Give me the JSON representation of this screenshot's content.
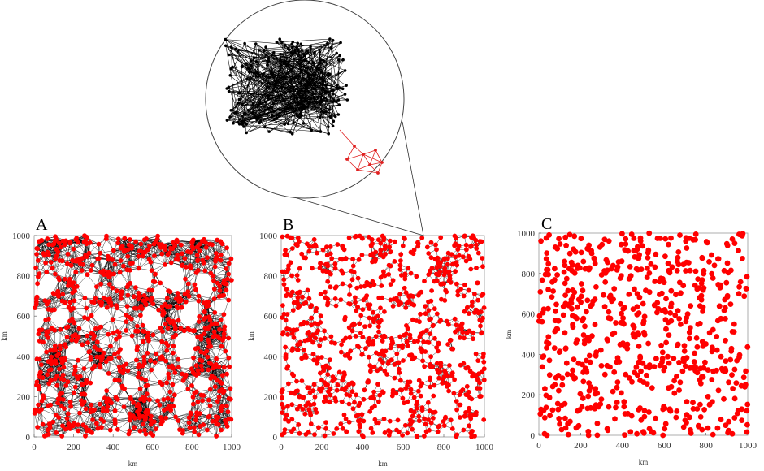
{
  "colors": {
    "node": "#ff0000",
    "node_stroke": "#cc0000",
    "edge": "#000000",
    "inset_node": "#000000",
    "inset_red": "#e02020",
    "frame": "#999999"
  },
  "chart_data": [
    {
      "panel": "A",
      "type": "scatter",
      "variant": "dense network (many edges)",
      "xlabel": "km",
      "ylabel": "km",
      "xlim": [
        0,
        1000
      ],
      "ylim": [
        0,
        1000
      ],
      "xticks": [
        "0",
        "200",
        "400",
        "600",
        "800",
        "1000"
      ],
      "yticks": [
        "0",
        "200",
        "400",
        "600",
        "800",
        "1000"
      ],
      "node_count": 900,
      "connection_radius": 80,
      "holes": [
        [
          70,
          760,
          45
        ],
        [
          260,
          750,
          40
        ],
        [
          430,
          770,
          35
        ],
        [
          560,
          780,
          40
        ],
        [
          720,
          770,
          45
        ],
        [
          870,
          750,
          40
        ],
        [
          130,
          590,
          40
        ],
        [
          340,
          600,
          45
        ],
        [
          580,
          590,
          40
        ],
        [
          790,
          610,
          40
        ],
        [
          200,
          420,
          45
        ],
        [
          470,
          410,
          40
        ],
        [
          760,
          450,
          45
        ],
        [
          90,
          220,
          40
        ],
        [
          320,
          230,
          45
        ],
        [
          620,
          220,
          40
        ],
        [
          860,
          260,
          40
        ],
        [
          450,
          80,
          35
        ],
        [
          750,
          120,
          35
        ]
      ],
      "grid": false
    },
    {
      "panel": "B",
      "type": "scatter",
      "variant": "sparse network",
      "xlabel": "km",
      "ylabel": "km",
      "xlim": [
        0,
        1000
      ],
      "ylim": [
        0,
        1000
      ],
      "xticks": [
        "0",
        "200",
        "400",
        "600",
        "800",
        "1000"
      ],
      "yticks": [
        "0",
        "200",
        "400",
        "600",
        "800",
        "1000"
      ],
      "node_count": 900,
      "connection_radius": 45,
      "holes": [
        [
          150,
          780,
          55
        ],
        [
          430,
          820,
          50
        ],
        [
          690,
          850,
          45
        ],
        [
          260,
          560,
          55
        ],
        [
          560,
          600,
          50
        ],
        [
          830,
          640,
          45
        ],
        [
          120,
          330,
          55
        ],
        [
          380,
          350,
          50
        ],
        [
          650,
          330,
          50
        ],
        [
          900,
          420,
          45
        ],
        [
          250,
          120,
          50
        ],
        [
          530,
          140,
          55
        ],
        [
          800,
          170,
          45
        ]
      ],
      "grid": false
    },
    {
      "panel": "C",
      "type": "scatter",
      "variant": "nodes only (no edges)",
      "xlabel": "km",
      "ylabel": "km",
      "xlim": [
        0,
        1000
      ],
      "ylim": [
        0,
        1000
      ],
      "xticks": [
        "0",
        "200",
        "400",
        "600",
        "800",
        "1000"
      ],
      "yticks": [
        "0",
        "200",
        "400",
        "600",
        "800",
        "1000"
      ],
      "node_count": 650,
      "grid": false
    }
  ],
  "inset": {
    "description_semantic": "zoom circle linked to panel B top edge",
    "black_node_count": 230,
    "red_node_count": 8
  }
}
